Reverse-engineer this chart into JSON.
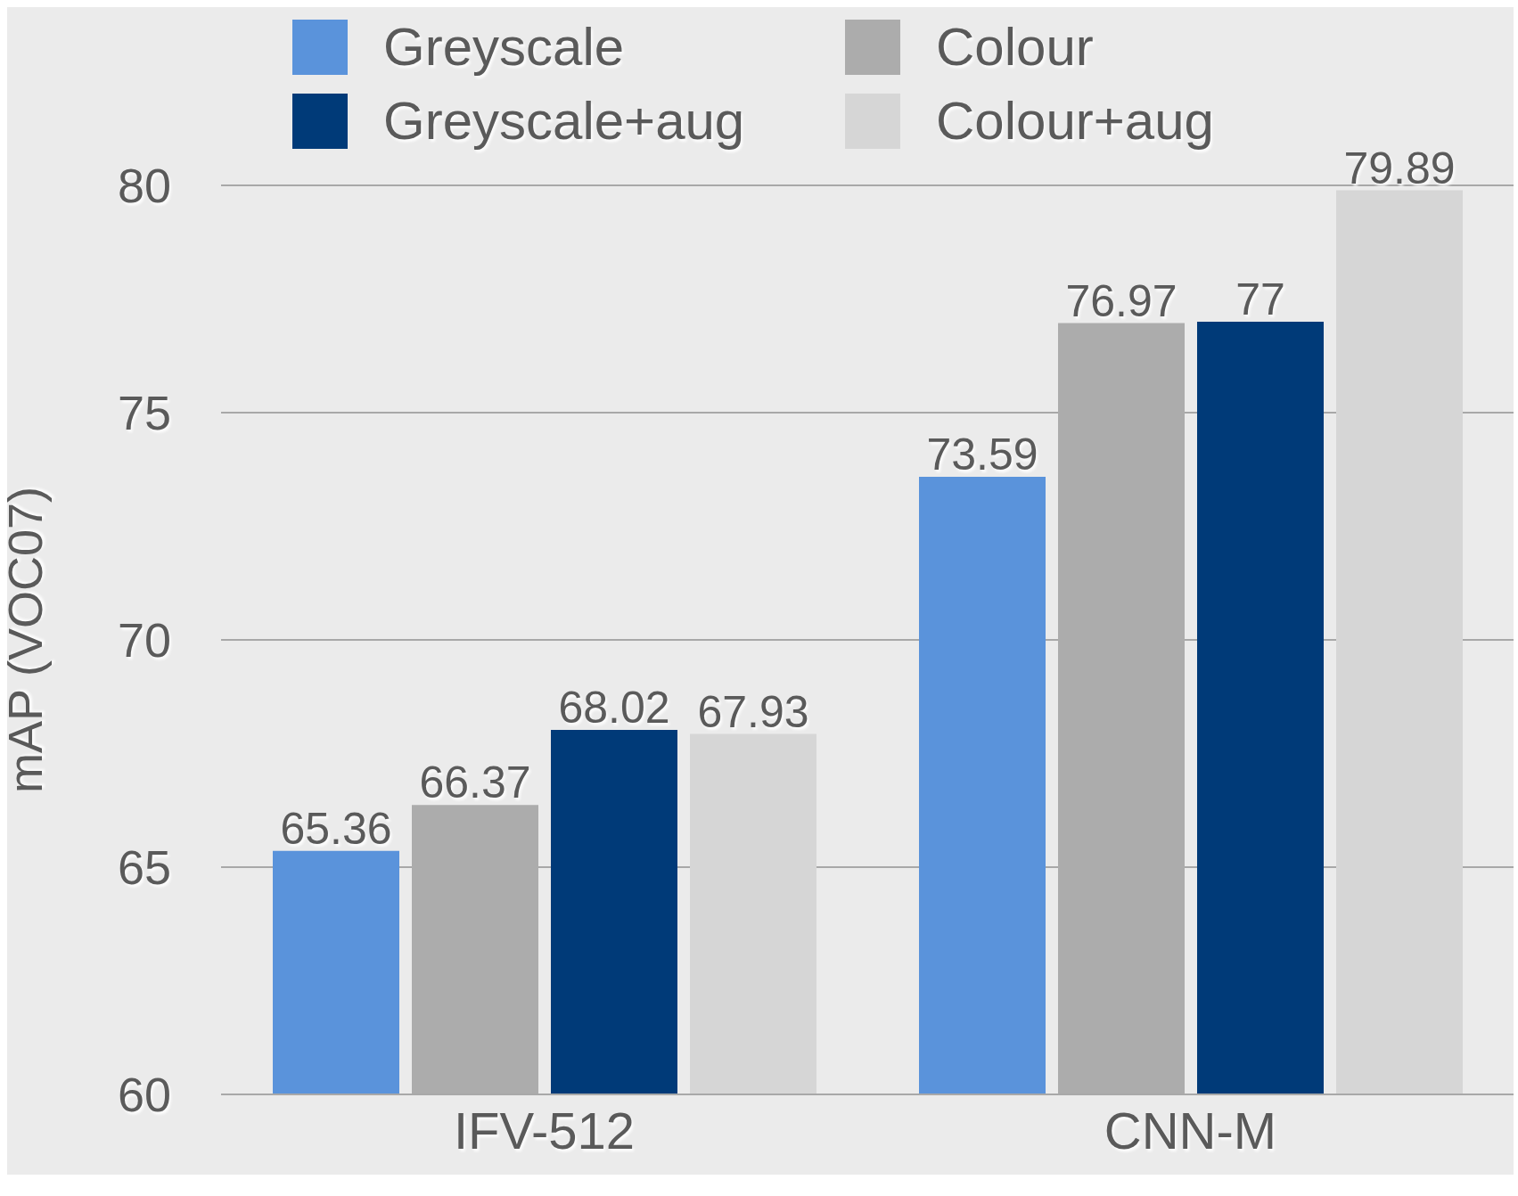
{
  "chart_data": {
    "type": "bar",
    "ylabel": "mAP (VOC07)",
    "categories": [
      "IFV-512",
      "CNN-M"
    ],
    "series": [
      {
        "name": "Greyscale",
        "color": "#5a93db",
        "values": [
          65.36,
          73.59
        ]
      },
      {
        "name": "Colour",
        "color": "#acacac",
        "values": [
          66.37,
          76.97
        ]
      },
      {
        "name": "Greyscale+aug",
        "color": "#003a78",
        "values": [
          68.02,
          77
        ]
      },
      {
        "name": "Colour+aug",
        "color": "#d6d6d6",
        "values": [
          67.93,
          79.89
        ]
      }
    ],
    "ylim": [
      60,
      80
    ],
    "yticks": [
      60,
      65,
      70,
      75,
      80
    ],
    "grid": "y",
    "legend": "top",
    "data_labels": true
  }
}
